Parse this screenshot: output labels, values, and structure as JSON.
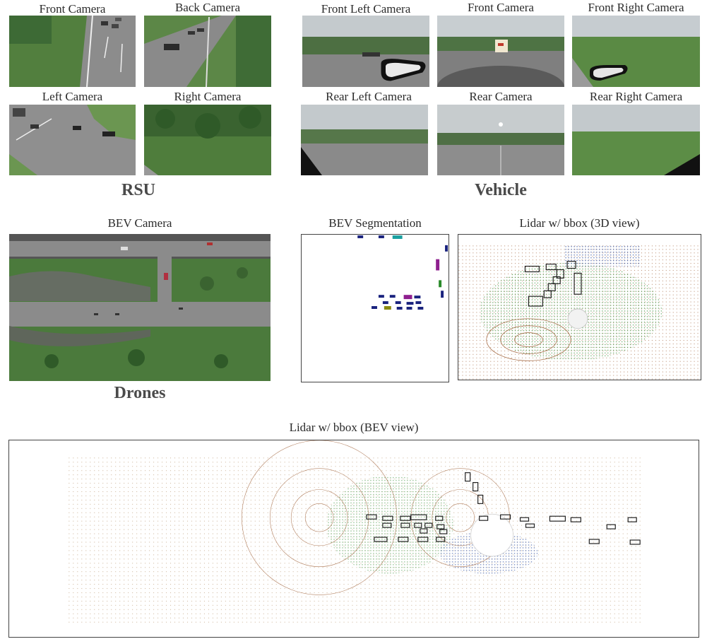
{
  "rsu": {
    "group_label": "RSU",
    "front_camera": "Front Camera",
    "back_camera": "Back Camera",
    "left_camera": "Left Camera",
    "right_camera": "Right Camera"
  },
  "vehicle": {
    "group_label": "Vehicle",
    "front_left_camera": "Front Left Camera",
    "front_camera": "Front Camera",
    "front_right_camera": "Front Right Camera",
    "rear_left_camera": "Rear Left Camera",
    "rear_camera": "Rear Camera",
    "rear_right_camera": "Rear Right Camera"
  },
  "drones": {
    "group_label": "Drones",
    "bev_camera": "BEV Camera",
    "bev_segmentation": "BEV Segmentation",
    "lidar_3d": "Lidar w/ bbox (3D view)"
  },
  "lidar_bev": {
    "title": "Lidar w/ bbox (BEV view)"
  },
  "colors": {
    "grass": "#5f8d4b",
    "road": "#8e8e8e",
    "sky": "#c9cfd3",
    "seg_vehicle": "#1a237e",
    "seg_accent": "#8e1f8e",
    "lidar_green": "#3a8f3a",
    "lidar_blue": "#2f4f9f",
    "lidar_brown": "#a0623a"
  }
}
